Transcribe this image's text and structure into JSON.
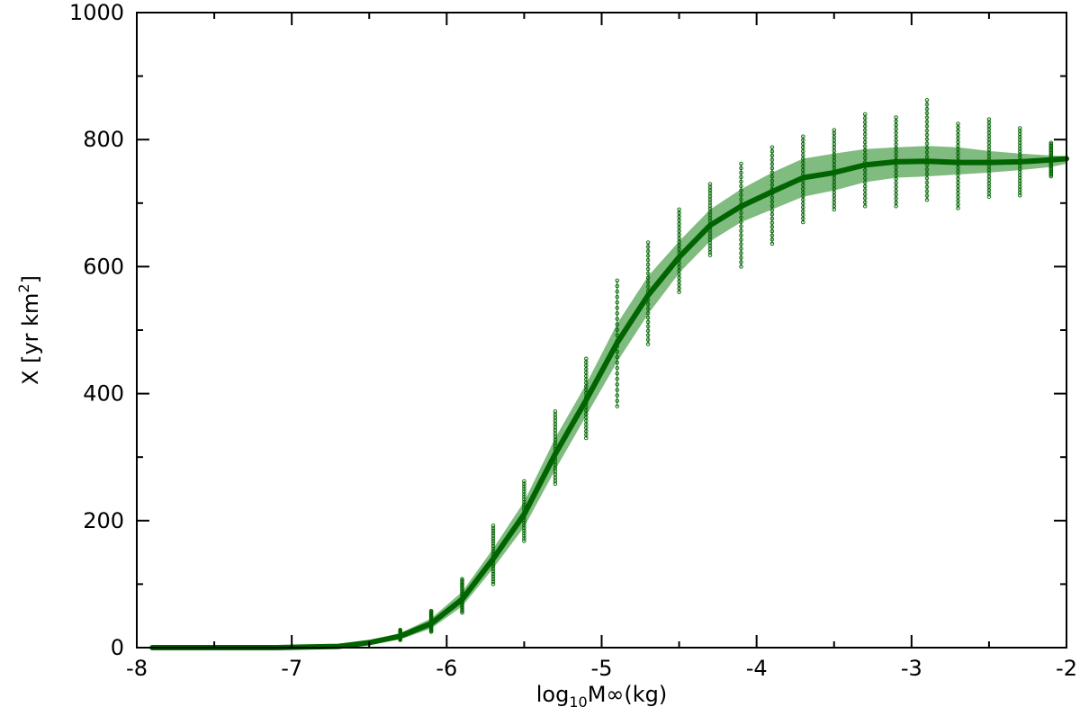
{
  "chart_data": {
    "type": "line",
    "title": "",
    "xlabel": {
      "main": "log",
      "sub": "10",
      "rest": "M∞(kg)"
    },
    "ylabel": {
      "main": "X [yr km",
      "sup": "2",
      "rest": "]"
    },
    "xlim": [
      -8,
      -2
    ],
    "ylim": [
      0,
      1000
    ],
    "x_ticks": [
      -8,
      -7,
      -6,
      -5,
      -4,
      -3,
      -2
    ],
    "x_tick_labels": [
      "-8",
      "-7",
      "-6",
      "-5",
      "-4",
      "-3",
      "-2"
    ],
    "y_ticks": [
      0,
      200,
      400,
      600,
      800,
      1000
    ],
    "y_tick_labels": [
      "0",
      "200",
      "400",
      "600",
      "800",
      "1000"
    ],
    "grid": false,
    "color": "#006400",
    "band_color": "#3c963c",
    "series": [
      {
        "x": [
          -7.9,
          -7.7,
          -7.5,
          -7.3,
          -7.1,
          -6.9,
          -6.7,
          -6.5,
          -6.3,
          -6.1,
          -5.9,
          -5.7,
          -5.5,
          -5.3,
          -5.1,
          -4.9,
          -4.7,
          -4.5,
          -4.3,
          -4.1,
          -3.9,
          -3.7,
          -3.5,
          -3.3,
          -3.1,
          -2.9,
          -2.7,
          -2.5,
          -2.3,
          -2.1,
          -2.0
        ],
        "y": [
          0,
          0,
          0,
          0,
          0,
          1,
          2,
          8,
          18,
          38,
          76,
          140,
          210,
          305,
          390,
          480,
          555,
          615,
          665,
          695,
          718,
          740,
          748,
          760,
          765,
          766,
          764,
          764,
          765,
          768,
          770
        ],
        "lower": [
          0,
          0,
          0,
          0,
          0,
          0,
          1,
          5,
          13,
          30,
          65,
          125,
          190,
          280,
          365,
          450,
          525,
          590,
          640,
          670,
          690,
          710,
          720,
          733,
          740,
          742,
          745,
          748,
          752,
          757,
          762
        ],
        "upper": [
          0,
          0,
          0,
          0,
          0,
          2,
          4,
          11,
          23,
          46,
          88,
          156,
          230,
          330,
          415,
          510,
          585,
          640,
          690,
          722,
          748,
          770,
          778,
          785,
          788,
          790,
          788,
          782,
          778,
          775,
          774
        ]
      }
    ],
    "scatter_columns": [
      {
        "x": -6.3,
        "ymin": 12,
        "ymax": 28
      },
      {
        "x": -6.1,
        "ymin": 25,
        "ymax": 58
      },
      {
        "x": -5.9,
        "ymin": 55,
        "ymax": 108
      },
      {
        "x": -5.7,
        "ymin": 100,
        "ymax": 192
      },
      {
        "x": -5.5,
        "ymin": 168,
        "ymax": 262
      },
      {
        "x": -5.3,
        "ymin": 258,
        "ymax": 372
      },
      {
        "x": -5.1,
        "ymin": 330,
        "ymax": 455
      },
      {
        "x": -4.9,
        "ymin": 380,
        "ymax": 578
      },
      {
        "x": -4.7,
        "ymin": 478,
        "ymax": 638
      },
      {
        "x": -4.5,
        "ymin": 560,
        "ymax": 690
      },
      {
        "x": -4.3,
        "ymin": 618,
        "ymax": 730
      },
      {
        "x": -4.1,
        "ymin": 600,
        "ymax": 762
      },
      {
        "x": -3.9,
        "ymin": 636,
        "ymax": 788
      },
      {
        "x": -3.7,
        "ymin": 670,
        "ymax": 805
      },
      {
        "x": -3.5,
        "ymin": 690,
        "ymax": 815
      },
      {
        "x": -3.3,
        "ymin": 695,
        "ymax": 840
      },
      {
        "x": -3.1,
        "ymin": 695,
        "ymax": 835
      },
      {
        "x": -2.9,
        "ymin": 705,
        "ymax": 862
      },
      {
        "x": -2.7,
        "ymin": 692,
        "ymax": 825
      },
      {
        "x": -2.5,
        "ymin": 710,
        "ymax": 832
      },
      {
        "x": -2.3,
        "ymin": 712,
        "ymax": 818
      },
      {
        "x": -2.1,
        "ymin": 742,
        "ymax": 795
      }
    ]
  }
}
